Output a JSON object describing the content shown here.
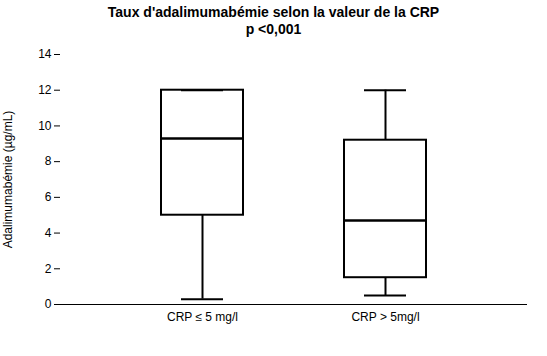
{
  "chart_data": {
    "type": "box",
    "title": "Taux d'adalimumabémie selon la valeur de la CRP",
    "subtitle": "p <0,001",
    "ylabel": "Adalimumabémie (µg/mL)",
    "categories": [
      "CRP ≤ 5 mg/l",
      "CRP > 5mg/l"
    ],
    "stats": [
      {
        "low": 0.3,
        "q1": 5.0,
        "median": 9.3,
        "q3": 12.0,
        "high": 12.0
      },
      {
        "low": 0.5,
        "q1": 1.5,
        "median": 4.7,
        "q3": 9.2,
        "high": 12.0
      }
    ],
    "color": "#000000",
    "ylim": [
      0,
      14
    ],
    "yticks": [
      0,
      2,
      4,
      6,
      8,
      10,
      12,
      14
    ],
    "grid": false
  }
}
